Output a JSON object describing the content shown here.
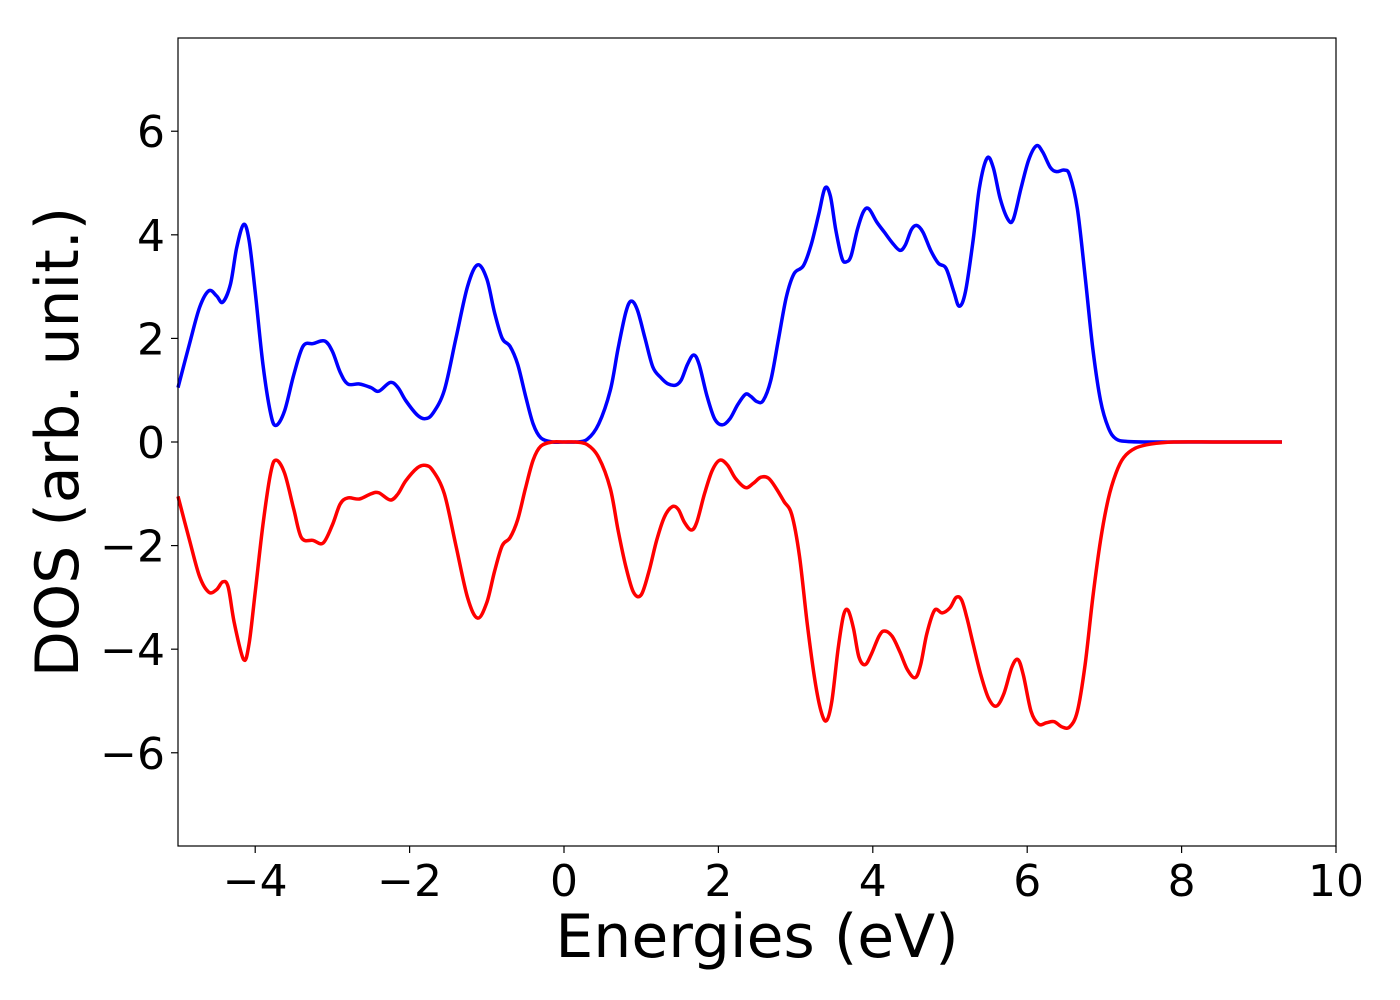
{
  "chart_data": {
    "type": "line",
    "title": "",
    "xlabel": "Energies (eV)",
    "ylabel": "DOS (arb. unit.)",
    "xlim": [
      -5,
      10
    ],
    "ylim": [
      -7.8,
      7.8
    ],
    "xticks": [
      -4,
      -2,
      0,
      2,
      4,
      6,
      8,
      10
    ],
    "xtick_labels": [
      "−4",
      "−2",
      "0",
      "2",
      "4",
      "6",
      "8",
      "10"
    ],
    "yticks": [
      -6,
      -4,
      -2,
      0,
      2,
      4,
      6
    ],
    "ytick_labels": [
      "−6",
      "−4",
      "−2",
      "0",
      "2",
      "4",
      "6"
    ],
    "grid": false,
    "series": [
      {
        "color": "#0000ff",
        "points": [
          [
            -5.0,
            1.05
          ],
          [
            -4.85,
            1.9
          ],
          [
            -4.72,
            2.6
          ],
          [
            -4.6,
            2.92
          ],
          [
            -4.5,
            2.82
          ],
          [
            -4.42,
            2.7
          ],
          [
            -4.32,
            3.05
          ],
          [
            -4.24,
            3.75
          ],
          [
            -4.15,
            4.2
          ],
          [
            -4.08,
            3.9
          ],
          [
            -4.0,
            2.9
          ],
          [
            -3.9,
            1.5
          ],
          [
            -3.8,
            0.55
          ],
          [
            -3.73,
            0.32
          ],
          [
            -3.62,
            0.6
          ],
          [
            -3.5,
            1.3
          ],
          [
            -3.38,
            1.85
          ],
          [
            -3.25,
            1.9
          ],
          [
            -3.1,
            1.95
          ],
          [
            -3.0,
            1.75
          ],
          [
            -2.9,
            1.35
          ],
          [
            -2.8,
            1.12
          ],
          [
            -2.65,
            1.12
          ],
          [
            -2.5,
            1.05
          ],
          [
            -2.4,
            0.98
          ],
          [
            -2.25,
            1.15
          ],
          [
            -2.15,
            1.05
          ],
          [
            -2.05,
            0.8
          ],
          [
            -1.9,
            0.52
          ],
          [
            -1.8,
            0.45
          ],
          [
            -1.7,
            0.55
          ],
          [
            -1.55,
            1.0
          ],
          [
            -1.4,
            2.0
          ],
          [
            -1.25,
            3.0
          ],
          [
            -1.12,
            3.42
          ],
          [
            -1.0,
            3.15
          ],
          [
            -0.9,
            2.5
          ],
          [
            -0.8,
            2.0
          ],
          [
            -0.7,
            1.85
          ],
          [
            -0.6,
            1.5
          ],
          [
            -0.5,
            0.9
          ],
          [
            -0.4,
            0.35
          ],
          [
            -0.3,
            0.08
          ],
          [
            -0.15,
            0.0
          ],
          [
            0.0,
            0.0
          ],
          [
            0.15,
            0.0
          ],
          [
            0.3,
            0.05
          ],
          [
            0.45,
            0.35
          ],
          [
            0.6,
            1.0
          ],
          [
            0.7,
            1.8
          ],
          [
            0.8,
            2.5
          ],
          [
            0.87,
            2.72
          ],
          [
            0.95,
            2.55
          ],
          [
            1.05,
            2.0
          ],
          [
            1.15,
            1.45
          ],
          [
            1.25,
            1.25
          ],
          [
            1.35,
            1.12
          ],
          [
            1.45,
            1.1
          ],
          [
            1.52,
            1.2
          ],
          [
            1.6,
            1.5
          ],
          [
            1.68,
            1.68
          ],
          [
            1.75,
            1.5
          ],
          [
            1.85,
            0.9
          ],
          [
            1.95,
            0.45
          ],
          [
            2.05,
            0.33
          ],
          [
            2.15,
            0.45
          ],
          [
            2.25,
            0.72
          ],
          [
            2.35,
            0.92
          ],
          [
            2.42,
            0.88
          ],
          [
            2.5,
            0.78
          ],
          [
            2.58,
            0.8
          ],
          [
            2.68,
            1.2
          ],
          [
            2.78,
            2.0
          ],
          [
            2.88,
            2.8
          ],
          [
            2.98,
            3.25
          ],
          [
            3.1,
            3.4
          ],
          [
            3.2,
            3.8
          ],
          [
            3.3,
            4.4
          ],
          [
            3.38,
            4.9
          ],
          [
            3.45,
            4.75
          ],
          [
            3.52,
            4.1
          ],
          [
            3.6,
            3.55
          ],
          [
            3.66,
            3.48
          ],
          [
            3.72,
            3.6
          ],
          [
            3.8,
            4.1
          ],
          [
            3.88,
            4.45
          ],
          [
            3.95,
            4.5
          ],
          [
            4.05,
            4.25
          ],
          [
            4.15,
            4.05
          ],
          [
            4.25,
            3.85
          ],
          [
            4.35,
            3.7
          ],
          [
            4.42,
            3.8
          ],
          [
            4.5,
            4.1
          ],
          [
            4.57,
            4.18
          ],
          [
            4.65,
            4.05
          ],
          [
            4.75,
            3.7
          ],
          [
            4.85,
            3.45
          ],
          [
            4.95,
            3.35
          ],
          [
            5.05,
            2.9
          ],
          [
            5.12,
            2.62
          ],
          [
            5.2,
            2.9
          ],
          [
            5.3,
            3.9
          ],
          [
            5.38,
            4.9
          ],
          [
            5.48,
            5.48
          ],
          [
            5.56,
            5.3
          ],
          [
            5.65,
            4.7
          ],
          [
            5.75,
            4.3
          ],
          [
            5.82,
            4.3
          ],
          [
            5.92,
            4.9
          ],
          [
            6.02,
            5.45
          ],
          [
            6.12,
            5.72
          ],
          [
            6.2,
            5.6
          ],
          [
            6.3,
            5.3
          ],
          [
            6.38,
            5.22
          ],
          [
            6.48,
            5.25
          ],
          [
            6.55,
            5.15
          ],
          [
            6.65,
            4.5
          ],
          [
            6.75,
            3.2
          ],
          [
            6.85,
            1.8
          ],
          [
            6.95,
            0.8
          ],
          [
            7.05,
            0.28
          ],
          [
            7.15,
            0.06
          ],
          [
            7.3,
            0.01
          ],
          [
            7.6,
            0.0
          ],
          [
            8.0,
            0.0
          ],
          [
            8.6,
            0.0
          ],
          [
            9.3,
            0.0
          ]
        ]
      },
      {
        "color": "#ff0000",
        "points": [
          [
            -5.0,
            -1.05
          ],
          [
            -4.85,
            -1.9
          ],
          [
            -4.72,
            -2.6
          ],
          [
            -4.6,
            -2.9
          ],
          [
            -4.5,
            -2.85
          ],
          [
            -4.42,
            -2.7
          ],
          [
            -4.35,
            -2.8
          ],
          [
            -4.27,
            -3.5
          ],
          [
            -4.15,
            -4.2
          ],
          [
            -4.08,
            -3.9
          ],
          [
            -4.0,
            -2.9
          ],
          [
            -3.9,
            -1.6
          ],
          [
            -3.8,
            -0.6
          ],
          [
            -3.73,
            -0.35
          ],
          [
            -3.62,
            -0.6
          ],
          [
            -3.5,
            -1.3
          ],
          [
            -3.4,
            -1.85
          ],
          [
            -3.25,
            -1.9
          ],
          [
            -3.12,
            -1.95
          ],
          [
            -3.0,
            -1.6
          ],
          [
            -2.9,
            -1.2
          ],
          [
            -2.8,
            -1.08
          ],
          [
            -2.65,
            -1.1
          ],
          [
            -2.5,
            -1.0
          ],
          [
            -2.4,
            -0.98
          ],
          [
            -2.25,
            -1.12
          ],
          [
            -2.15,
            -1.0
          ],
          [
            -2.05,
            -0.75
          ],
          [
            -1.9,
            -0.5
          ],
          [
            -1.8,
            -0.45
          ],
          [
            -1.7,
            -0.55
          ],
          [
            -1.55,
            -1.0
          ],
          [
            -1.4,
            -2.0
          ],
          [
            -1.25,
            -3.0
          ],
          [
            -1.12,
            -3.4
          ],
          [
            -1.0,
            -3.1
          ],
          [
            -0.9,
            -2.5
          ],
          [
            -0.8,
            -2.0
          ],
          [
            -0.7,
            -1.85
          ],
          [
            -0.6,
            -1.5
          ],
          [
            -0.5,
            -0.9
          ],
          [
            -0.4,
            -0.35
          ],
          [
            -0.3,
            -0.08
          ],
          [
            -0.15,
            0.0
          ],
          [
            0.0,
            0.0
          ],
          [
            0.15,
            0.0
          ],
          [
            0.3,
            -0.05
          ],
          [
            0.45,
            -0.3
          ],
          [
            0.6,
            -0.9
          ],
          [
            0.7,
            -1.7
          ],
          [
            0.8,
            -2.4
          ],
          [
            0.9,
            -2.9
          ],
          [
            1.0,
            -2.95
          ],
          [
            1.1,
            -2.5
          ],
          [
            1.2,
            -1.9
          ],
          [
            1.3,
            -1.45
          ],
          [
            1.4,
            -1.25
          ],
          [
            1.48,
            -1.3
          ],
          [
            1.56,
            -1.55
          ],
          [
            1.65,
            -1.7
          ],
          [
            1.72,
            -1.55
          ],
          [
            1.82,
            -1.0
          ],
          [
            1.92,
            -0.55
          ],
          [
            2.02,
            -0.35
          ],
          [
            2.12,
            -0.45
          ],
          [
            2.22,
            -0.7
          ],
          [
            2.35,
            -0.88
          ],
          [
            2.45,
            -0.8
          ],
          [
            2.55,
            -0.68
          ],
          [
            2.65,
            -0.7
          ],
          [
            2.75,
            -0.9
          ],
          [
            2.85,
            -1.15
          ],
          [
            2.95,
            -1.4
          ],
          [
            3.05,
            -2.2
          ],
          [
            3.15,
            -3.5
          ],
          [
            3.25,
            -4.6
          ],
          [
            3.33,
            -5.2
          ],
          [
            3.4,
            -5.38
          ],
          [
            3.47,
            -5.0
          ],
          [
            3.55,
            -4.0
          ],
          [
            3.62,
            -3.35
          ],
          [
            3.68,
            -3.25
          ],
          [
            3.75,
            -3.6
          ],
          [
            3.82,
            -4.15
          ],
          [
            3.9,
            -4.3
          ],
          [
            3.98,
            -4.1
          ],
          [
            4.08,
            -3.75
          ],
          [
            4.15,
            -3.65
          ],
          [
            4.25,
            -3.75
          ],
          [
            4.35,
            -4.05
          ],
          [
            4.45,
            -4.4
          ],
          [
            4.55,
            -4.55
          ],
          [
            4.62,
            -4.3
          ],
          [
            4.7,
            -3.7
          ],
          [
            4.8,
            -3.25
          ],
          [
            4.9,
            -3.3
          ],
          [
            5.0,
            -3.2
          ],
          [
            5.08,
            -3.0
          ],
          [
            5.15,
            -3.05
          ],
          [
            5.22,
            -3.4
          ],
          [
            5.3,
            -3.9
          ],
          [
            5.4,
            -4.5
          ],
          [
            5.5,
            -4.95
          ],
          [
            5.6,
            -5.1
          ],
          [
            5.7,
            -4.85
          ],
          [
            5.8,
            -4.35
          ],
          [
            5.88,
            -4.2
          ],
          [
            5.95,
            -4.5
          ],
          [
            6.05,
            -5.2
          ],
          [
            6.15,
            -5.45
          ],
          [
            6.25,
            -5.42
          ],
          [
            6.35,
            -5.4
          ],
          [
            6.45,
            -5.5
          ],
          [
            6.55,
            -5.5
          ],
          [
            6.65,
            -5.2
          ],
          [
            6.75,
            -4.3
          ],
          [
            6.85,
            -3.0
          ],
          [
            6.95,
            -1.9
          ],
          [
            7.05,
            -1.1
          ],
          [
            7.15,
            -0.6
          ],
          [
            7.25,
            -0.3
          ],
          [
            7.4,
            -0.12
          ],
          [
            7.6,
            -0.04
          ],
          [
            7.9,
            0.0
          ],
          [
            8.5,
            0.0
          ],
          [
            9.3,
            0.0
          ]
        ]
      }
    ]
  }
}
